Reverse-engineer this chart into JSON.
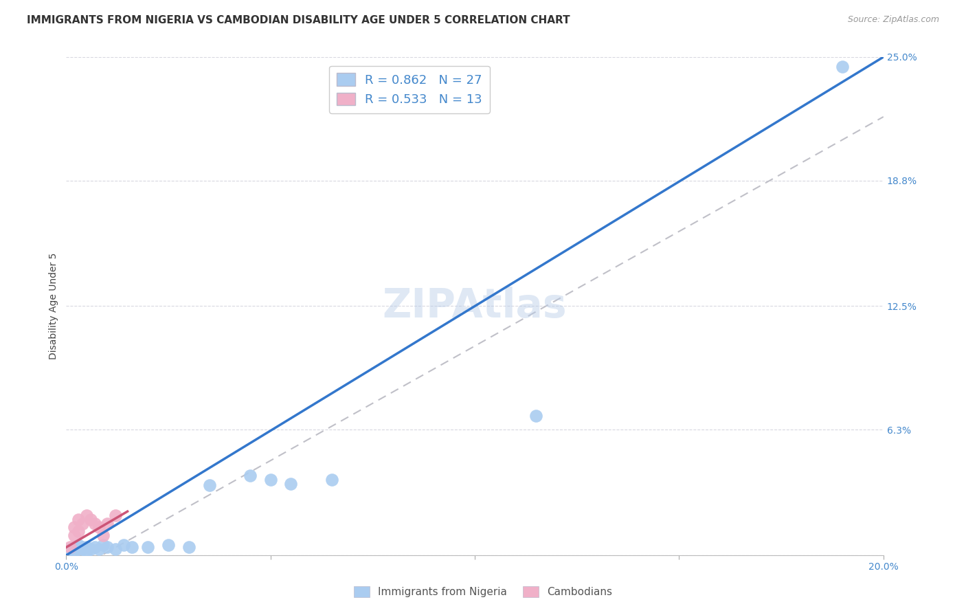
{
  "title": "IMMIGRANTS FROM NIGERIA VS CAMBODIAN DISABILITY AGE UNDER 5 CORRELATION CHART",
  "source": "Source: ZipAtlas.com",
  "ylabel": "Disability Age Under 5",
  "xlim": [
    0.0,
    0.2
  ],
  "ylim": [
    0.0,
    0.25
  ],
  "xticks": [
    0.0,
    0.05,
    0.1,
    0.15,
    0.2
  ],
  "xtick_labels": [
    "0.0%",
    "",
    "",
    "",
    "20.0%"
  ],
  "ytick_labels_right": [
    "25.0%",
    "18.8%",
    "12.5%",
    "6.3%",
    ""
  ],
  "ytick_positions_right": [
    0.25,
    0.188,
    0.125,
    0.063,
    0.0
  ],
  "nigeria_R": 0.862,
  "nigeria_N": 27,
  "cambodian_R": 0.533,
  "cambodian_N": 13,
  "nigeria_color": "#aaccf0",
  "cambodian_color": "#f0b0c8",
  "nigeria_line_color": "#3377cc",
  "cambodian_line_color": "#cc5577",
  "gray_dash_color": "#c0c0c8",
  "label_color": "#4488cc",
  "watermark": "ZIPAtlas",
  "nigeria_x": [
    0.001,
    0.002,
    0.002,
    0.003,
    0.003,
    0.004,
    0.004,
    0.005,
    0.005,
    0.006,
    0.007,
    0.008,
    0.009,
    0.01,
    0.012,
    0.014,
    0.016,
    0.02,
    0.025,
    0.03,
    0.035,
    0.045,
    0.05,
    0.055,
    0.065,
    0.115,
    0.19
  ],
  "nigeria_y": [
    0.003,
    0.002,
    0.004,
    0.003,
    0.005,
    0.003,
    0.004,
    0.002,
    0.004,
    0.003,
    0.004,
    0.003,
    0.005,
    0.004,
    0.003,
    0.005,
    0.004,
    0.004,
    0.005,
    0.004,
    0.035,
    0.04,
    0.038,
    0.036,
    0.038,
    0.07,
    0.245
  ],
  "cambodian_x": [
    0.001,
    0.002,
    0.002,
    0.003,
    0.003,
    0.004,
    0.005,
    0.006,
    0.007,
    0.008,
    0.009,
    0.01,
    0.012
  ],
  "cambodian_y": [
    0.004,
    0.01,
    0.014,
    0.012,
    0.018,
    0.016,
    0.02,
    0.018,
    0.016,
    0.014,
    0.01,
    0.016,
    0.02
  ],
  "title_fontsize": 11,
  "axis_label_fontsize": 10,
  "tick_fontsize": 10,
  "legend_fontsize": 13,
  "watermark_fontsize": 42,
  "background_color": "#ffffff",
  "grid_color": "#d8d8e0"
}
